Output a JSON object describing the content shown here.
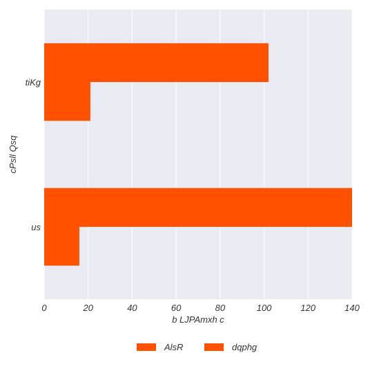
{
  "chart_data": {
    "type": "bar",
    "orientation": "horizontal",
    "title": "",
    "xlabel": "b LJPAmxh c",
    "ylabel": "cPsll Qsq",
    "categories": [
      "tiKg",
      "us"
    ],
    "series": [
      {
        "name": "AlsR",
        "values": [
          102,
          140
        ],
        "color": "#ff5100"
      },
      {
        "name": "dqphg",
        "values": [
          21,
          16
        ],
        "color": "#ff5100"
      }
    ],
    "xlim": [
      0,
      140
    ],
    "xticks": [
      "0",
      "20",
      "40",
      "60",
      "80",
      "100",
      "120",
      "140"
    ],
    "grid": true,
    "legend_position": "bottom-center",
    "background_color": "#eaeaf2"
  }
}
